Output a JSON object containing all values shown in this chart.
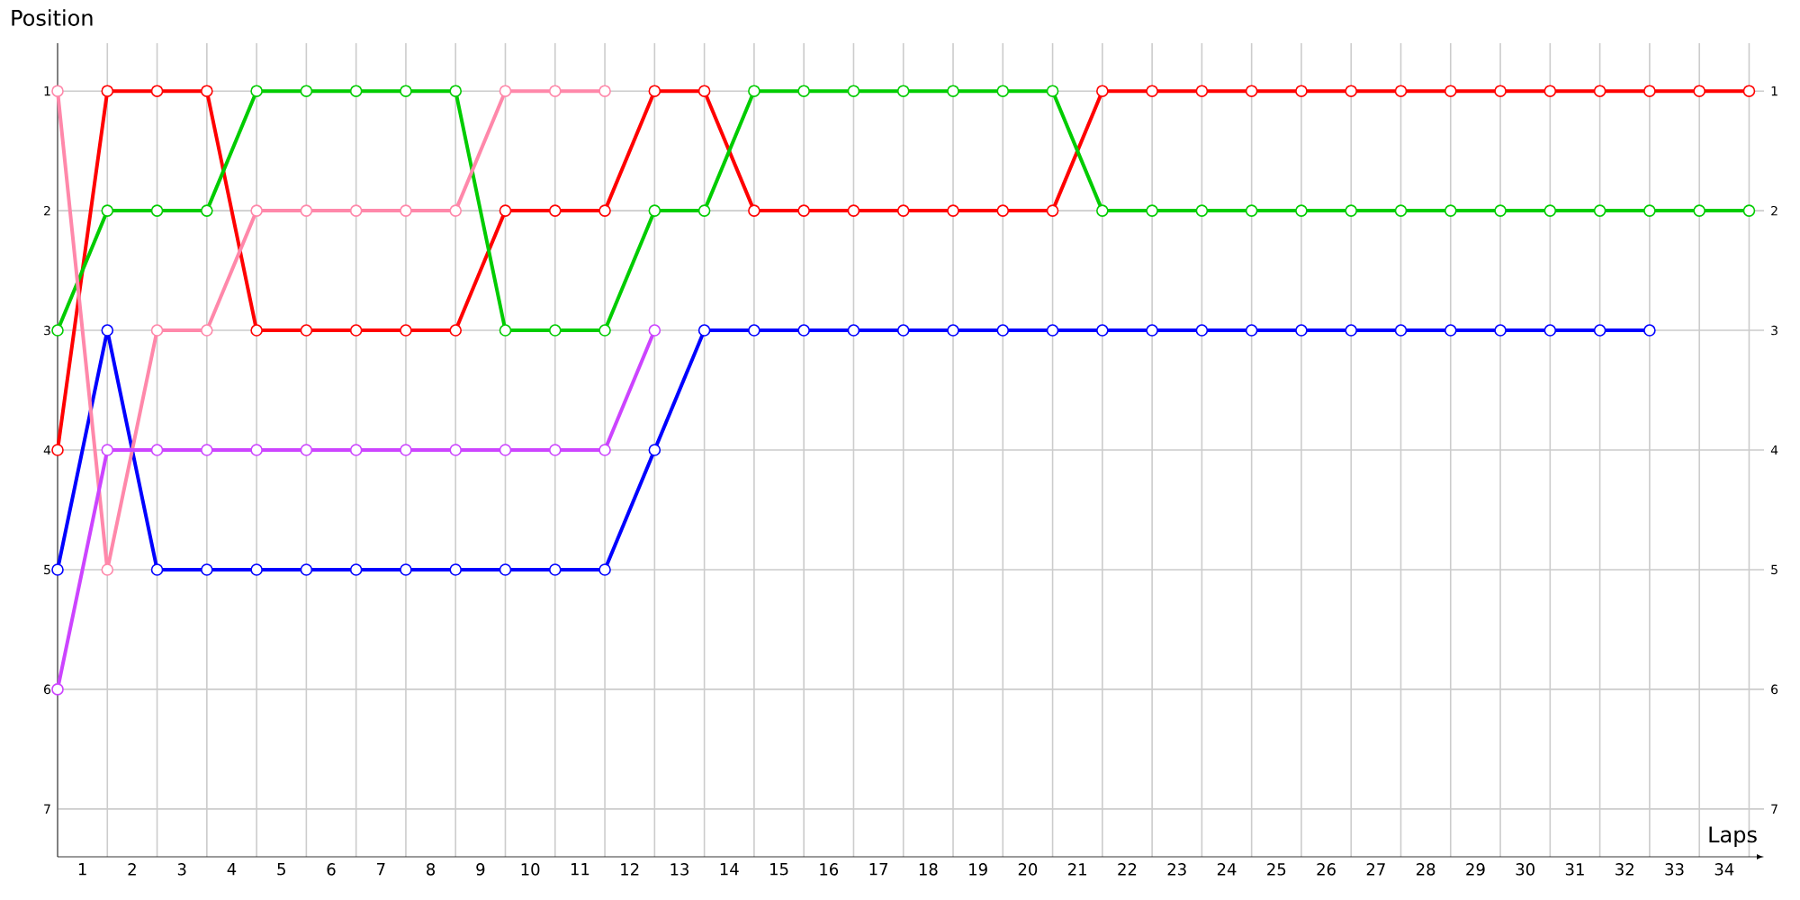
{
  "chart_data": {
    "type": "line",
    "xlabel": "Laps",
    "ylabel": "Position",
    "x": [
      0,
      1,
      2,
      3,
      4,
      5,
      6,
      7,
      8,
      9,
      10,
      11,
      12,
      13,
      14,
      15,
      16,
      17,
      18,
      19,
      20,
      21,
      22,
      23,
      24,
      25,
      26,
      27,
      28,
      29,
      30,
      31,
      32,
      33,
      34
    ],
    "series": [
      {
        "color": "#ff0000",
        "values": [
          4,
          1,
          1,
          1,
          3,
          3,
          3,
          3,
          3,
          2,
          2,
          2,
          1,
          1,
          2,
          2,
          2,
          2,
          2,
          2,
          2,
          1,
          1,
          1,
          1,
          1,
          1,
          1,
          1,
          1,
          1,
          1,
          1,
          1,
          1
        ]
      },
      {
        "color": "#00cc00",
        "values": [
          3,
          2,
          2,
          2,
          1,
          1,
          1,
          1,
          1,
          3,
          3,
          3,
          2,
          2,
          1,
          1,
          1,
          1,
          1,
          1,
          1,
          2,
          2,
          2,
          2,
          2,
          2,
          2,
          2,
          2,
          2,
          2,
          2,
          2,
          2
        ]
      },
      {
        "color": "#0000ff",
        "values": [
          5,
          3,
          5,
          5,
          5,
          5,
          5,
          5,
          5,
          5,
          5,
          5,
          4,
          3,
          3,
          3,
          3,
          3,
          3,
          3,
          3,
          3,
          3,
          3,
          3,
          3,
          3,
          3,
          3,
          3,
          3,
          3,
          3,
          null,
          null
        ]
      },
      {
        "color": "#ff88aa",
        "values": [
          1,
          5,
          3,
          3,
          2,
          2,
          2,
          2,
          2,
          1,
          1,
          1,
          null,
          null,
          null,
          null,
          null,
          null,
          null,
          null,
          null,
          null,
          null,
          null,
          null,
          null,
          null,
          null,
          null,
          null,
          null,
          null,
          null,
          null,
          null
        ]
      },
      {
        "color": "#cc44ff",
        "values": [
          6,
          4,
          4,
          4,
          4,
          4,
          4,
          4,
          4,
          4,
          4,
          4,
          3,
          null,
          null,
          null,
          null,
          null,
          null,
          null,
          null,
          null,
          null,
          null,
          null,
          null,
          null,
          null,
          null,
          null,
          null,
          null,
          null,
          null,
          null
        ]
      }
    ],
    "xlim": [
      0,
      34.3
    ],
    "ylim": [
      7.4,
      0.6
    ],
    "y2lim": [
      7.4,
      0.6
    ],
    "xticks": [
      {
        "value": 0,
        "label": null
      },
      {
        "value": 1,
        "label": null
      },
      {
        "value": 2,
        "label": null
      },
      {
        "value": 3,
        "label": null
      },
      {
        "value": 4,
        "label": null
      },
      {
        "value": 5,
        "label": null
      },
      {
        "value": 6,
        "label": null
      },
      {
        "value": 7,
        "label": null
      },
      {
        "value": 8,
        "label": null
      },
      {
        "value": 9,
        "label": null
      },
      {
        "value": 10,
        "label": null
      },
      {
        "value": 11,
        "label": null
      },
      {
        "value": 12,
        "label": null
      },
      {
        "value": 13,
        "label": null
      },
      {
        "value": 14,
        "label": null
      },
      {
        "value": 15,
        "label": null
      },
      {
        "value": 16,
        "label": null
      },
      {
        "value": 17,
        "label": null
      },
      {
        "value": 18,
        "label": null
      },
      {
        "value": 19,
        "label": null
      },
      {
        "value": 20,
        "label": null
      },
      {
        "value": 21,
        "label": null
      },
      {
        "value": 22,
        "label": null
      },
      {
        "value": 23,
        "label": null
      },
      {
        "value": 24,
        "label": null
      },
      {
        "value": 25,
        "label": null
      },
      {
        "value": 26,
        "label": null
      },
      {
        "value": 27,
        "label": null
      },
      {
        "value": 28,
        "label": null
      },
      {
        "value": 29,
        "label": null
      },
      {
        "value": 30,
        "label": null
      },
      {
        "value": 31,
        "label": null
      },
      {
        "value": 32,
        "label": null
      },
      {
        "value": 33,
        "label": null
      },
      {
        "value": 34,
        "label": null
      },
      {
        "value": 0.5,
        "label": "1"
      },
      {
        "value": 1.5,
        "label": "2"
      },
      {
        "value": 2.5,
        "label": "3"
      },
      {
        "value": 3.5,
        "label": "4"
      },
      {
        "value": 4.5,
        "label": "5"
      },
      {
        "value": 5.5,
        "label": "6"
      },
      {
        "value": 6.5,
        "label": "7"
      },
      {
        "value": 7.5,
        "label": "8"
      },
      {
        "value": 8.5,
        "label": "9"
      },
      {
        "value": 9.5,
        "label": "10"
      },
      {
        "value": 10.5,
        "label": "11"
      },
      {
        "value": 11.5,
        "label": "12"
      },
      {
        "value": 12.5,
        "label": "13"
      },
      {
        "value": 13.5,
        "label": "14"
      },
      {
        "value": 14.5,
        "label": "15"
      },
      {
        "value": 15.5,
        "label": "16"
      },
      {
        "value": 16.5,
        "label": "17"
      },
      {
        "value": 17.5,
        "label": "18"
      },
      {
        "value": 18.5,
        "label": "19"
      },
      {
        "value": 19.5,
        "label": "20"
      },
      {
        "value": 20.5,
        "label": "21"
      },
      {
        "value": 21.5,
        "label": "22"
      },
      {
        "value": 22.5,
        "label": "23"
      },
      {
        "value": 23.5,
        "label": "24"
      },
      {
        "value": 24.5,
        "label": "25"
      },
      {
        "value": 25.5,
        "label": "26"
      },
      {
        "value": 26.5,
        "label": "27"
      },
      {
        "value": 27.5,
        "label": "28"
      },
      {
        "value": 28.5,
        "label": "29"
      },
      {
        "value": 29.5,
        "label": "30"
      },
      {
        "value": 30.5,
        "label": "31"
      },
      {
        "value": 31.5,
        "label": "32"
      },
      {
        "value": 32.5,
        "label": "33"
      },
      {
        "value": 33.5,
        "label": "34"
      }
    ],
    "yticks": [
      1,
      2,
      3,
      4,
      5,
      6,
      7
    ],
    "y2ticks": [
      1,
      2,
      3,
      4,
      5,
      6,
      7
    ],
    "grid": true,
    "marker": "circle",
    "line_style": "solid"
  }
}
